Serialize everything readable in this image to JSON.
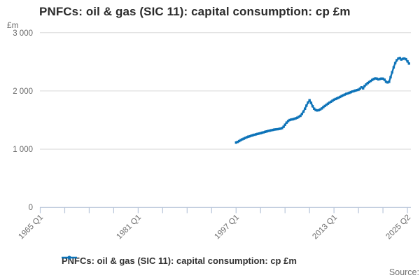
{
  "title": "PNFCs: oil & gas (SIC 11): capital consumption: cp £m",
  "y_axis": {
    "unit": "£m",
    "tick_labels": [
      "3 000",
      "2 000",
      "1 000",
      "0"
    ]
  },
  "x_axis": {
    "labels": [
      "1965 Q1",
      "1981 Q1",
      "1997 Q1",
      "2013 Q1",
      "2025 Q2"
    ]
  },
  "legend": {
    "label": "PNFCs: oil & gas (SIC 11): capital consumption: cp £m"
  },
  "source": {
    "label": "Source:"
  },
  "colors": {
    "line": "#0d73b8",
    "grid": "#d9d9d9",
    "axis": "#b9c6da",
    "muted_text": "#6b6b6b",
    "title_text": "#2b2b2b"
  },
  "chart_data": {
    "type": "line",
    "title": "PNFCs: oil & gas (SIC 11): capital consumption: cp £m",
    "ylabel": "£m",
    "ylim": [
      0,
      3000
    ],
    "y_ticks": [
      0,
      1000,
      2000,
      3000
    ],
    "x_axis_range": [
      "1965 Q1",
      "2025 Q2"
    ],
    "x_tick_interval_years": 4,
    "grid": "horizontal",
    "legend_position": "bottom",
    "frequency": "quarterly",
    "series_start": "1997 Q1",
    "series_end": "2025 Q2",
    "values": [
      1113,
      1125,
      1140,
      1155,
      1170,
      1180,
      1192,
      1205,
      1215,
      1222,
      1232,
      1240,
      1248,
      1255,
      1262,
      1268,
      1275,
      1283,
      1290,
      1298,
      1305,
      1312,
      1318,
      1325,
      1330,
      1336,
      1340,
      1343,
      1347,
      1352,
      1362,
      1385,
      1420,
      1455,
      1482,
      1500,
      1508,
      1513,
      1520,
      1530,
      1540,
      1555,
      1572,
      1605,
      1645,
      1695,
      1748,
      1800,
      1840,
      1795,
      1738,
      1695,
      1672,
      1665,
      1670,
      1682,
      1700,
      1722,
      1742,
      1762,
      1780,
      1798,
      1815,
      1832,
      1850,
      1862,
      1873,
      1885,
      1898,
      1912,
      1925,
      1938,
      1950,
      1958,
      1968,
      1978,
      1990,
      1998,
      2006,
      2014,
      2022,
      2040,
      2062,
      2045,
      2085,
      2110,
      2135,
      2152,
      2172,
      2190,
      2205,
      2215,
      2210,
      2198,
      2205,
      2212,
      2210,
      2192,
      2158,
      2145,
      2158,
      2235,
      2320,
      2405,
      2478,
      2528,
      2555,
      2565,
      2538,
      2552,
      2556,
      2545,
      2508,
      2470
    ]
  }
}
